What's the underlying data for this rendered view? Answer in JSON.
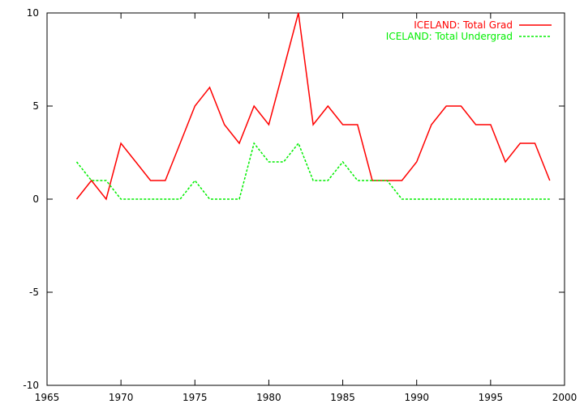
{
  "chart_data": {
    "type": "line",
    "title": "",
    "xlabel": "",
    "ylabel": "",
    "xlim": [
      1965,
      2000
    ],
    "ylim": [
      -10,
      10
    ],
    "x_ticks": [
      1965,
      1970,
      1975,
      1980,
      1985,
      1990,
      1995,
      2000
    ],
    "y_ticks": [
      -10,
      -5,
      0,
      5,
      10
    ],
    "x_tick_labels": [
      "1965",
      "1970",
      "1975",
      "1980",
      "1985",
      "1990",
      "1995",
      "2000"
    ],
    "y_tick_labels": [
      "-10",
      "-5",
      "0",
      "5",
      "10"
    ],
    "grid": false,
    "legend_position": "top-right",
    "x": [
      1967,
      1968,
      1969,
      1970,
      1971,
      1972,
      1973,
      1974,
      1975,
      1976,
      1977,
      1978,
      1979,
      1980,
      1981,
      1982,
      1983,
      1984,
      1985,
      1986,
      1987,
      1988,
      1989,
      1990,
      1991,
      1992,
      1993,
      1994,
      1995,
      1996,
      1997,
      1998,
      1999
    ],
    "series": [
      {
        "name": "ICELAND: Total Grad",
        "color": "#ff0000",
        "dash": "solid",
        "values": [
          0,
          1,
          0,
          3,
          2,
          1,
          1,
          3,
          5,
          6,
          4,
          3,
          5,
          4,
          7,
          10,
          4,
          5,
          4,
          4,
          1,
          1,
          1,
          2,
          4,
          5,
          5,
          4,
          4,
          2,
          3,
          3,
          1
        ]
      },
      {
        "name": "ICELAND: Total Undergrad",
        "color": "#00ee00",
        "dash": "dashed",
        "values": [
          2,
          1,
          1,
          0,
          0,
          0,
          0,
          0,
          1,
          0,
          0,
          0,
          3,
          2,
          2,
          3,
          1,
          1,
          2,
          1,
          1,
          1,
          0,
          0,
          0,
          0,
          0,
          0,
          0,
          0,
          0,
          0,
          0
        ]
      }
    ]
  }
}
